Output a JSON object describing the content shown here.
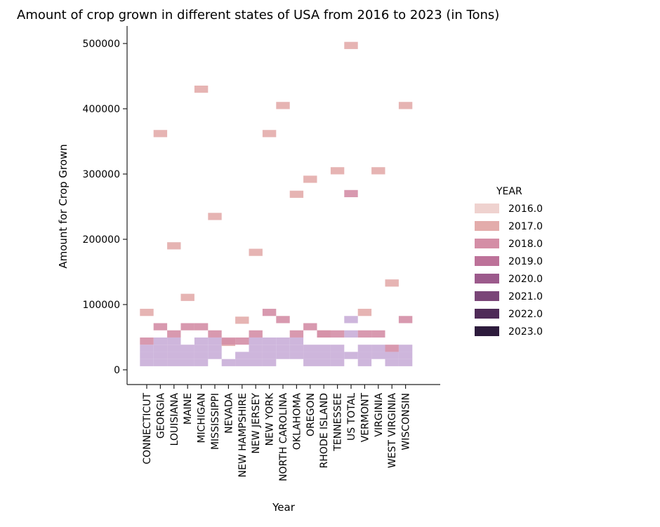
{
  "chart_data": {
    "type": "heatmap",
    "title": "Amount of crop grown in different states of USA from 2016 to 2023 (in Tons)",
    "xlabel": "Year",
    "ylabel": "Amount for Crop Grown",
    "ylim": [
      -22000,
      530000
    ],
    "yticks": [
      0,
      100000,
      200000,
      300000,
      400000,
      500000
    ],
    "grid": false,
    "legend_position": "right",
    "categories": [
      "CONNECTICUT",
      "GEORGIA",
      "LOUISIANA",
      "MAINE",
      "MICHIGAN",
      "MISSISSIPPI",
      "NEVADA",
      "NEW HAMPSHIRE",
      "NEW JERSEY",
      "NEW YORK",
      "NORTH CAROLINA",
      "OKLAHOMA",
      "OREGON",
      "RHODE ISLAND",
      "TENNESSEE",
      "US TOTAL",
      "VERMONT",
      "VIRGINIA",
      "WEST VIRGINIA",
      "WISCONSIN"
    ],
    "legend": {
      "title": "YEAR",
      "entries": [
        {
          "label": "2016.0",
          "color": "#efd2cf"
        },
        {
          "label": "2017.0",
          "color": "#e3acab"
        },
        {
          "label": "2018.0",
          "color": "#d48ea6"
        },
        {
          "label": "2019.0",
          "color": "#bd7299"
        },
        {
          "label": "2020.0",
          "color": "#9c5a8c"
        },
        {
          "label": "2021.0",
          "color": "#7a4678"
        },
        {
          "label": "2022.0",
          "color": "#4f2b58"
        },
        {
          "label": "2023.0",
          "color": "#2d1b3c"
        }
      ]
    },
    "series": [
      {
        "name": "2017.0",
        "color": "#e3acab",
        "values": [
          88000,
          362000,
          190000,
          111000,
          430000,
          235000,
          42000,
          76000,
          180000,
          362000,
          405000,
          269000,
          292000,
          55000,
          305000,
          497000,
          88000,
          305000,
          133000,
          405000
        ]
      },
      {
        "name": "2018.0",
        "color": "#d48ea6",
        "values": [
          44000,
          66000,
          55000,
          66000,
          66000,
          55000,
          44000,
          44000,
          55000,
          88000,
          77000,
          55000,
          66000,
          55000,
          55000,
          270000,
          55000,
          55000,
          33000,
          77000
        ]
      }
    ],
    "bin_height": 11000,
    "base_cells": [
      {
        "x": "CONNECTICUT",
        "y": [
          11000,
          22000,
          33000
        ]
      },
      {
        "x": "GEORGIA",
        "y": [
          11000,
          22000,
          33000,
          44000
        ]
      },
      {
        "x": "LOUISIANA",
        "y": [
          11000,
          22000,
          33000,
          44000
        ]
      },
      {
        "x": "MAINE",
        "y": [
          11000,
          22000,
          33000
        ]
      },
      {
        "x": "MICHIGAN",
        "y": [
          11000,
          22000,
          33000,
          44000
        ]
      },
      {
        "x": "MISSISSIPPI",
        "y": [
          22000,
          33000,
          44000
        ]
      },
      {
        "x": "NEVADA",
        "y": [
          11000
        ]
      },
      {
        "x": "NEW HAMPSHIRE",
        "y": [
          11000,
          22000
        ]
      },
      {
        "x": "NEW JERSEY",
        "y": [
          11000,
          22000,
          33000,
          44000
        ]
      },
      {
        "x": "NEW YORK",
        "y": [
          11000,
          22000,
          33000,
          44000
        ]
      },
      {
        "x": "NORTH CAROLINA",
        "y": [
          22000,
          33000,
          44000
        ]
      },
      {
        "x": "OKLAHOMA",
        "y": [
          22000,
          33000,
          44000
        ]
      },
      {
        "x": "OREGON",
        "y": [
          11000,
          22000,
          33000
        ]
      },
      {
        "x": "RHODE ISLAND",
        "y": [
          11000,
          22000,
          33000
        ]
      },
      {
        "x": "TENNESSEE",
        "y": [
          11000,
          22000,
          33000
        ]
      },
      {
        "x": "US TOTAL",
        "y": [
          22000,
          55000,
          77000
        ]
      },
      {
        "x": "VERMONT",
        "y": [
          11000,
          22000,
          33000
        ]
      },
      {
        "x": "VIRGINIA",
        "y": [
          22000,
          33000
        ]
      },
      {
        "x": "WEST VIRGINIA",
        "y": [
          11000,
          22000
        ]
      },
      {
        "x": "WISCONSIN",
        "y": [
          11000,
          22000,
          33000
        ]
      }
    ],
    "base_color": "#c5a9d6"
  }
}
